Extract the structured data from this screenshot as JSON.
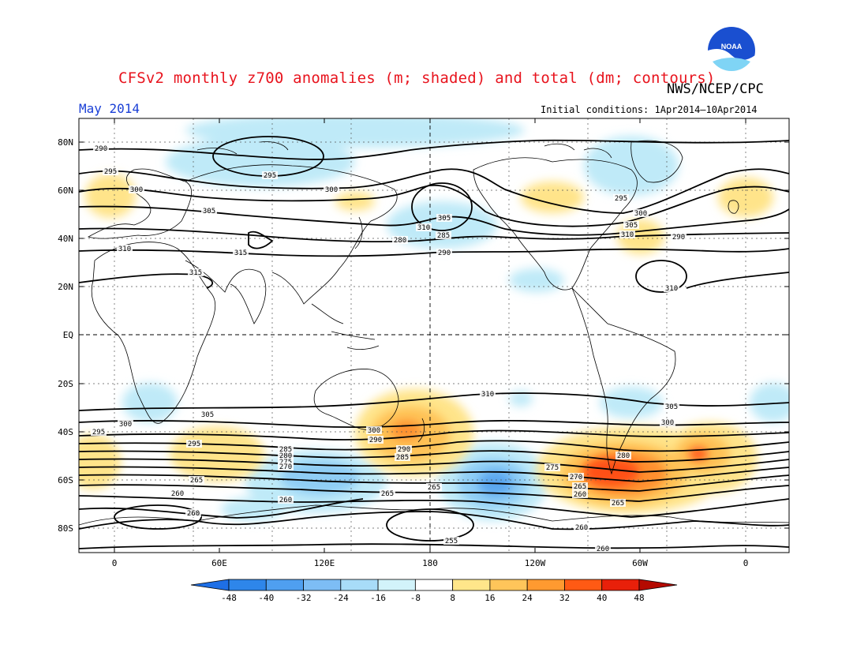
{
  "title": "CFSv2 monthly z700 anomalies (m; shaded) and total (dm; contours)",
  "agency": "NWS/NCEP/CPC",
  "logo_text": "NOAA",
  "month": "May 2014",
  "initial_conditions": "Initial conditions: 1Apr2014–10Apr2014",
  "lat_labels": [
    "80N",
    "60N",
    "40N",
    "20N",
    "EQ",
    "20S",
    "40S",
    "60S",
    "80S"
  ],
  "lon_labels": [
    "0",
    "60E",
    "120E",
    "180",
    "120W",
    "60W",
    "0"
  ],
  "colorbar_labels": [
    "-48",
    "-40",
    "-32",
    "-24",
    "-16",
    "-8",
    "8",
    "16",
    "24",
    "32",
    "40",
    "48"
  ],
  "colorbar_colors": [
    "#1e6fe6",
    "#2e86ea",
    "#4f9ff0",
    "#7dbdf5",
    "#a8dcf8",
    "#d2f3fa",
    "#ffffff",
    "#ffe68a",
    "#ffc55a",
    "#ff9a30",
    "#ff5a14",
    "#e8200a",
    "#b40a00"
  ],
  "contour_labels": {
    "northern": [
      "290",
      "295",
      "300",
      "305",
      "310",
      "315",
      "285",
      "280"
    ],
    "southern": [
      "310",
      "305",
      "300",
      "295",
      "290",
      "285",
      "280",
      "275",
      "270",
      "265",
      "260",
      "255"
    ]
  },
  "contour_label_texts": [
    "290",
    "295",
    "300",
    "305",
    "310",
    "285",
    "280",
    "290",
    "295",
    "300",
    "305",
    "310",
    "290",
    "295",
    "300",
    "305",
    "310",
    "315",
    "315",
    "310",
    "310",
    "305",
    "305",
    "300",
    "300",
    "295",
    "290",
    "300",
    "295",
    "290",
    "285",
    "280",
    "275",
    "270",
    "265",
    "260",
    "265",
    "260",
    "260",
    "265",
    "260",
    "265",
    "285",
    "280",
    "275",
    "270",
    "265",
    "260",
    "255",
    "260"
  ]
}
